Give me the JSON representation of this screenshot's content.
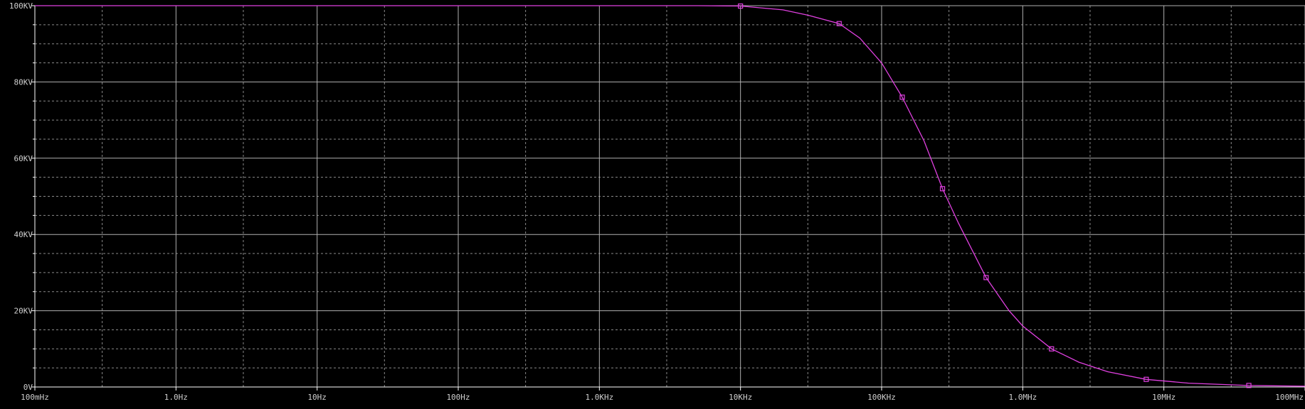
{
  "chart_data": {
    "type": "line",
    "x_scale": "log",
    "grid": true,
    "xlim": [
      0.1,
      100000000
    ],
    "ylim": [
      0,
      100000
    ],
    "x_ticks": [
      {
        "value": 0.1,
        "label": "100mHz"
      },
      {
        "value": 1,
        "label": "1.0Hz"
      },
      {
        "value": 10,
        "label": "10Hz"
      },
      {
        "value": 100,
        "label": "100Hz"
      },
      {
        "value": 1000,
        "label": "1.0KHz"
      },
      {
        "value": 10000,
        "label": "10KHz"
      },
      {
        "value": 100000,
        "label": "100KHz"
      },
      {
        "value": 1000000,
        "label": "1.0MHz"
      },
      {
        "value": 10000000,
        "label": "10MHz"
      },
      {
        "value": 100000000,
        "label": "100MHz"
      }
    ],
    "y_ticks": [
      {
        "value": 0,
        "label": "0V"
      },
      {
        "value": 20000,
        "label": "20KV"
      },
      {
        "value": 40000,
        "label": "40KV"
      },
      {
        "value": 60000,
        "label": "60KV"
      },
      {
        "value": 80000,
        "label": "80KV"
      },
      {
        "value": 100000,
        "label": "100KV"
      }
    ],
    "series": [
      {
        "color": "#e040e0",
        "x": [
          0.1,
          1,
          10,
          100,
          1000,
          5000,
          10000,
          20000,
          30000,
          50000,
          70000,
          100000,
          140000,
          200000,
          270000,
          350000,
          550000,
          800000,
          1000000,
          1600000,
          2500000,
          4000000,
          7500000,
          15000000,
          40000000,
          100000000
        ],
        "y": [
          100000,
          100000,
          100000,
          100000,
          100000,
          100000,
          99900,
          98900,
          97500,
          95300,
          91500,
          85000,
          76000,
          64500,
          52000,
          43000,
          28700,
          20000,
          16000,
          10000,
          6500,
          4000,
          2000,
          1000,
          400,
          200
        ]
      }
    ],
    "markers": {
      "x": [
        10000,
        50000,
        140000,
        270000,
        550000,
        1600000,
        7500000,
        40000000
      ],
      "y": [
        99900,
        95300,
        76000,
        52000,
        28700,
        10000,
        2000,
        400
      ]
    }
  }
}
